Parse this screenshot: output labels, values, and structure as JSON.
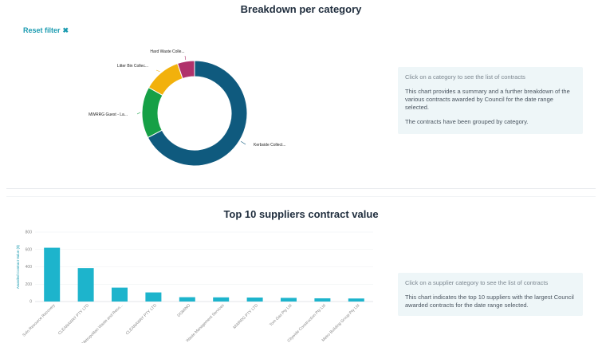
{
  "donut": {
    "title": "Breakdown per category",
    "reset_label": "Reset filter",
    "reset_icon": "close-icon",
    "info_hint": "Click on a category to see the list of contracts",
    "info_p1": "This chart provides a summary and a further breakdown of the various contracts awarded by Council for the date range selected.",
    "info_p2": "The contracts have been grouped by category."
  },
  "bars": {
    "title": "Top 10 suppliers contract value",
    "info_hint": "Click on a supplier category to see the list of contracts",
    "info_p1": "This chart indicates the top 10 suppliers with the largest Council awarded contracts for the date range selected."
  },
  "chart_data": [
    {
      "type": "pie",
      "title": "Breakdown per category",
      "donut": true,
      "slices": [
        {
          "label": "Kerbside Collect...",
          "value": 64,
          "color": "#0f5a7e"
        },
        {
          "label": "MWRRG Guest - La...",
          "value": 15,
          "color": "#16a046"
        },
        {
          "label": "Litter Bin Collec...",
          "value": 11,
          "color": "#f2b10c"
        },
        {
          "label": "Hard Waste Colle...",
          "value": 5,
          "color": "#b0326b"
        }
      ]
    },
    {
      "type": "bar",
      "title": "Top 10 suppliers contract value",
      "ylabel": "Awarded Contract Value ($)",
      "ylim": [
        0,
        800
      ],
      "yticks": [
        "0",
        "200",
        "400",
        "600",
        "800"
      ],
      "color": "#1db4cc",
      "categories": [
        "Solo Resource Recovery",
        "CLEANAWAY PTY LTD",
        "Metropolitan Waste and Reso...",
        "CLEANAWAY PTY LTD",
        "DOMINO",
        "Waste Management Services",
        "MWRRG PTY LTD",
        "Tom Gas Pty Ltd",
        "Citywide Construction Pty Ltd",
        "Metro Building Group Pty Ltd"
      ],
      "values": [
        620,
        385,
        160,
        105,
        50,
        48,
        46,
        42,
        37,
        35
      ]
    }
  ]
}
